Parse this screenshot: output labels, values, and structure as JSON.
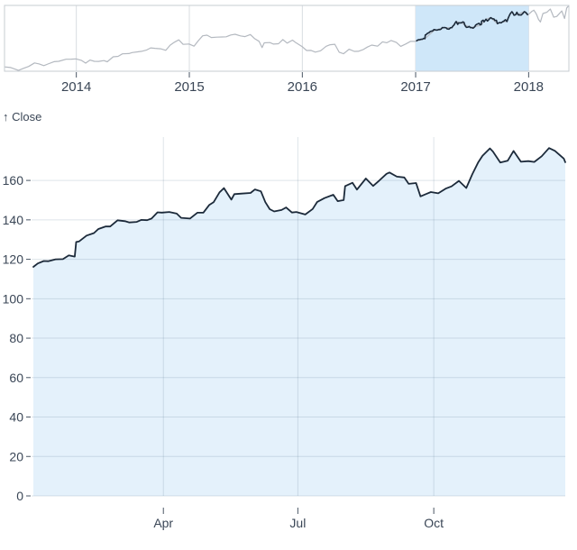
{
  "colors": {
    "dark_line": "#1c2a3a",
    "context_line": "#b4b9c0",
    "selection_fill": "#cfe7f9",
    "area_fill": "#e4f1fb",
    "grid_line": "rgba(73,107,135,0.18)",
    "frame_border": "#c7ccd2",
    "context_grid": "#d8dce1",
    "tick_mark": "#4a5664",
    "tick_text": "#3a4656",
    "background": "#ffffff"
  },
  "chart_data": [
    {
      "type": "line",
      "role": "context-overview-with-brush",
      "series_name": "Close",
      "x_domain": [
        "2013-05-14",
        "2018-05-11"
      ],
      "y_domain": [
        55,
        189
      ],
      "grid": "vertical-year-lines",
      "selection": {
        "from": "2017-01-01",
        "to": "2018-01-01"
      },
      "x_ticks": [
        {
          "label": "2014",
          "date": "2014-01-01"
        },
        {
          "label": "2015",
          "date": "2015-01-01"
        },
        {
          "label": "2016",
          "date": "2016-01-01"
        },
        {
          "label": "2017",
          "date": "2017-01-01"
        },
        {
          "label": "2018",
          "date": "2018-01-01"
        }
      ],
      "points": [
        [
          "2013-05-14",
          63.84
        ],
        [
          "2013-06-03",
          62.61
        ],
        [
          "2013-06-28",
          56.65
        ],
        [
          "2013-07-15",
          61.06
        ],
        [
          "2013-07-31",
          64.65
        ],
        [
          "2013-08-19",
          71.85
        ],
        [
          "2013-09-03",
          69.8
        ],
        [
          "2013-09-18",
          66.38
        ],
        [
          "2013-10-01",
          69.71
        ],
        [
          "2013-10-21",
          74.48
        ],
        [
          "2013-11-05",
          75.25
        ],
        [
          "2013-11-29",
          79.44
        ],
        [
          "2013-12-16",
          79.61
        ],
        [
          "2013-12-31",
          80.15
        ],
        [
          "2014-01-17",
          77.24
        ],
        [
          "2014-01-31",
          71.51
        ],
        [
          "2014-02-14",
          77.71
        ],
        [
          "2014-02-28",
          75.18
        ],
        [
          "2014-03-14",
          74.96
        ],
        [
          "2014-03-31",
          76.68
        ],
        [
          "2014-04-11",
          74.23
        ],
        [
          "2014-04-30",
          84.3
        ],
        [
          "2014-05-16",
          85.36
        ],
        [
          "2014-05-30",
          90.43
        ],
        [
          "2014-06-20",
          90.91
        ],
        [
          "2014-06-30",
          92.93
        ],
        [
          "2014-07-18",
          94.43
        ],
        [
          "2014-07-31",
          95.6
        ],
        [
          "2014-08-15",
          97.98
        ],
        [
          "2014-08-29",
          102.5
        ],
        [
          "2014-09-12",
          101.66
        ],
        [
          "2014-09-30",
          100.75
        ],
        [
          "2014-10-17",
          97.67
        ],
        [
          "2014-10-31",
          108.0
        ],
        [
          "2014-11-14",
          114.18
        ],
        [
          "2014-11-28",
          118.93
        ],
        [
          "2014-12-12",
          109.73
        ],
        [
          "2014-12-31",
          110.38
        ],
        [
          "2015-01-16",
          105.99
        ],
        [
          "2015-01-30",
          117.16
        ],
        [
          "2015-02-13",
          127.08
        ],
        [
          "2015-02-27",
          128.46
        ],
        [
          "2015-03-13",
          123.59
        ],
        [
          "2015-03-31",
          124.43
        ],
        [
          "2015-04-17",
          124.75
        ],
        [
          "2015-04-30",
          125.15
        ],
        [
          "2015-05-15",
          128.77
        ],
        [
          "2015-05-29",
          130.28
        ],
        [
          "2015-06-15",
          126.92
        ],
        [
          "2015-06-30",
          125.43
        ],
        [
          "2015-07-17",
          129.62
        ],
        [
          "2015-07-31",
          121.3
        ],
        [
          "2015-08-14",
          115.96
        ],
        [
          "2015-08-24",
          103.12
        ],
        [
          "2015-08-31",
          112.76
        ],
        [
          "2015-09-18",
          113.45
        ],
        [
          "2015-09-30",
          110.3
        ],
        [
          "2015-10-16",
          111.04
        ],
        [
          "2015-10-30",
          119.5
        ],
        [
          "2015-11-13",
          112.34
        ],
        [
          "2015-11-30",
          118.3
        ],
        [
          "2015-12-11",
          113.18
        ],
        [
          "2015-12-31",
          105.26
        ],
        [
          "2016-01-15",
          97.13
        ],
        [
          "2016-01-29",
          97.34
        ],
        [
          "2016-02-12",
          93.99
        ],
        [
          "2016-02-29",
          96.69
        ],
        [
          "2016-03-18",
          105.92
        ],
        [
          "2016-03-31",
          108.99
        ],
        [
          "2016-04-15",
          109.85
        ],
        [
          "2016-04-29",
          93.74
        ],
        [
          "2016-05-13",
          90.52
        ],
        [
          "2016-05-31",
          99.86
        ],
        [
          "2016-06-17",
          95.33
        ],
        [
          "2016-06-30",
          95.6
        ],
        [
          "2016-07-15",
          98.78
        ],
        [
          "2016-07-29",
          104.21
        ],
        [
          "2016-08-12",
          108.18
        ],
        [
          "2016-08-31",
          106.1
        ],
        [
          "2016-09-16",
          114.92
        ],
        [
          "2016-09-30",
          113.05
        ],
        [
          "2016-10-14",
          117.63
        ],
        [
          "2016-10-31",
          113.54
        ],
        [
          "2016-11-14",
          105.71
        ],
        [
          "2016-11-30",
          110.52
        ],
        [
          "2016-12-16",
          115.97
        ],
        [
          "2016-12-30",
          115.82
        ],
        [
          "2017-01-31",
          121.35
        ],
        [
          "2017-02-28",
          136.99
        ],
        [
          "2017-03-31",
          143.66
        ],
        [
          "2017-04-28",
          143.65
        ],
        [
          "2017-05-12",
          156.1
        ],
        [
          "2017-05-31",
          152.76
        ],
        [
          "2017-06-09",
          148.98
        ],
        [
          "2017-06-30",
          144.02
        ],
        [
          "2017-07-31",
          148.73
        ],
        [
          "2017-08-16",
          160.95
        ],
        [
          "2017-08-31",
          164.0
        ],
        [
          "2017-09-22",
          151.89
        ],
        [
          "2017-09-29",
          154.12
        ],
        [
          "2017-10-20",
          156.25
        ],
        [
          "2017-10-31",
          169.04
        ],
        [
          "2017-11-08",
          176.24
        ],
        [
          "2017-11-15",
          169.08
        ],
        [
          "2017-11-30",
          171.85
        ],
        [
          "2017-12-18",
          176.42
        ],
        [
          "2017-12-29",
          169.23
        ],
        [
          "2018-01-12",
          177.09
        ],
        [
          "2018-01-18",
          179.26
        ],
        [
          "2018-01-26",
          171.51
        ],
        [
          "2018-02-02",
          160.5
        ],
        [
          "2018-02-08",
          155.15
        ],
        [
          "2018-02-16",
          172.43
        ],
        [
          "2018-03-01",
          175.0
        ],
        [
          "2018-03-12",
          181.72
        ],
        [
          "2018-03-23",
          164.94
        ],
        [
          "2018-04-02",
          166.68
        ],
        [
          "2018-04-18",
          177.84
        ],
        [
          "2018-04-27",
          162.32
        ],
        [
          "2018-05-04",
          183.83
        ],
        [
          "2018-05-11",
          188.59
        ]
      ]
    },
    {
      "type": "area",
      "role": "focus-detail",
      "series_name": "Close",
      "ylabel": "↑ Close",
      "x_domain": [
        "2017-01-03",
        "2017-12-29"
      ],
      "y_domain": [
        0,
        182
      ],
      "grid": "both",
      "y_ticks": [
        0,
        20,
        40,
        60,
        80,
        100,
        120,
        140,
        160
      ],
      "x_ticks": [
        {
          "label": "Apr",
          "date": "2017-04-01"
        },
        {
          "label": "Jul",
          "date": "2017-07-01"
        },
        {
          "label": "Oct",
          "date": "2017-10-01"
        }
      ],
      "points": [
        [
          "2017-01-03",
          116.15
        ],
        [
          "2017-01-06",
          117.91
        ],
        [
          "2017-01-10",
          119.11
        ],
        [
          "2017-01-13",
          119.04
        ],
        [
          "2017-01-18",
          119.99
        ],
        [
          "2017-01-23",
          120.08
        ],
        [
          "2017-01-27",
          121.95
        ],
        [
          "2017-01-31",
          121.35
        ],
        [
          "2017-02-01",
          128.75
        ],
        [
          "2017-02-03",
          129.08
        ],
        [
          "2017-02-08",
          132.04
        ],
        [
          "2017-02-13",
          133.29
        ],
        [
          "2017-02-16",
          135.35
        ],
        [
          "2017-02-21",
          136.7
        ],
        [
          "2017-02-24",
          136.66
        ],
        [
          "2017-03-01",
          139.79
        ],
        [
          "2017-03-06",
          139.34
        ],
        [
          "2017-03-09",
          138.68
        ],
        [
          "2017-03-14",
          138.99
        ],
        [
          "2017-03-17",
          139.99
        ],
        [
          "2017-03-21",
          139.84
        ],
        [
          "2017-03-24",
          140.64
        ],
        [
          "2017-03-28",
          143.8
        ],
        [
          "2017-03-31",
          143.66
        ],
        [
          "2017-04-05",
          144.02
        ],
        [
          "2017-04-10",
          143.17
        ],
        [
          "2017-04-13",
          141.05
        ],
        [
          "2017-04-19",
          140.68
        ],
        [
          "2017-04-24",
          143.64
        ],
        [
          "2017-04-28",
          143.65
        ],
        [
          "2017-05-02",
          147.51
        ],
        [
          "2017-05-05",
          148.96
        ],
        [
          "2017-05-09",
          153.99
        ],
        [
          "2017-05-12",
          156.1
        ],
        [
          "2017-05-17",
          150.25
        ],
        [
          "2017-05-19",
          153.06
        ],
        [
          "2017-05-24",
          153.34
        ],
        [
          "2017-05-30",
          153.67
        ],
        [
          "2017-06-02",
          155.45
        ],
        [
          "2017-06-06",
          154.45
        ],
        [
          "2017-06-09",
          148.98
        ],
        [
          "2017-06-12",
          145.42
        ],
        [
          "2017-06-15",
          144.29
        ],
        [
          "2017-06-20",
          145.01
        ],
        [
          "2017-06-23",
          146.28
        ],
        [
          "2017-06-27",
          143.73
        ],
        [
          "2017-06-30",
          144.02
        ],
        [
          "2017-07-06",
          142.73
        ],
        [
          "2017-07-11",
          145.53
        ],
        [
          "2017-07-14",
          149.04
        ],
        [
          "2017-07-19",
          151.02
        ],
        [
          "2017-07-25",
          152.74
        ],
        [
          "2017-07-28",
          149.5
        ],
        [
          "2017-08-01",
          150.05
        ],
        [
          "2017-08-02",
          157.14
        ],
        [
          "2017-08-07",
          158.81
        ],
        [
          "2017-08-10",
          155.32
        ],
        [
          "2017-08-16",
          160.95
        ],
        [
          "2017-08-21",
          157.21
        ],
        [
          "2017-08-25",
          159.86
        ],
        [
          "2017-08-30",
          163.35
        ],
        [
          "2017-09-01",
          164.05
        ],
        [
          "2017-09-06",
          161.91
        ],
        [
          "2017-09-11",
          161.5
        ],
        [
          "2017-09-14",
          158.28
        ],
        [
          "2017-09-19",
          158.67
        ],
        [
          "2017-09-22",
          151.89
        ],
        [
          "2017-09-26",
          153.14
        ],
        [
          "2017-09-29",
          154.12
        ],
        [
          "2017-10-04",
          153.48
        ],
        [
          "2017-10-09",
          155.84
        ],
        [
          "2017-10-13",
          156.99
        ],
        [
          "2017-10-18",
          159.76
        ],
        [
          "2017-10-23",
          156.17
        ],
        [
          "2017-10-27",
          163.05
        ],
        [
          "2017-10-31",
          169.04
        ],
        [
          "2017-11-03",
          172.5
        ],
        [
          "2017-11-08",
          176.24
        ],
        [
          "2017-11-10",
          174.67
        ],
        [
          "2017-11-15",
          169.08
        ],
        [
          "2017-11-20",
          169.98
        ],
        [
          "2017-11-24",
          174.97
        ],
        [
          "2017-11-29",
          169.48
        ],
        [
          "2017-12-04",
          169.8
        ],
        [
          "2017-12-08",
          169.37
        ],
        [
          "2017-12-13",
          172.27
        ],
        [
          "2017-12-18",
          176.42
        ],
        [
          "2017-12-22",
          175.01
        ],
        [
          "2017-12-28",
          171.08
        ],
        [
          "2017-12-29",
          169.23
        ]
      ]
    }
  ]
}
